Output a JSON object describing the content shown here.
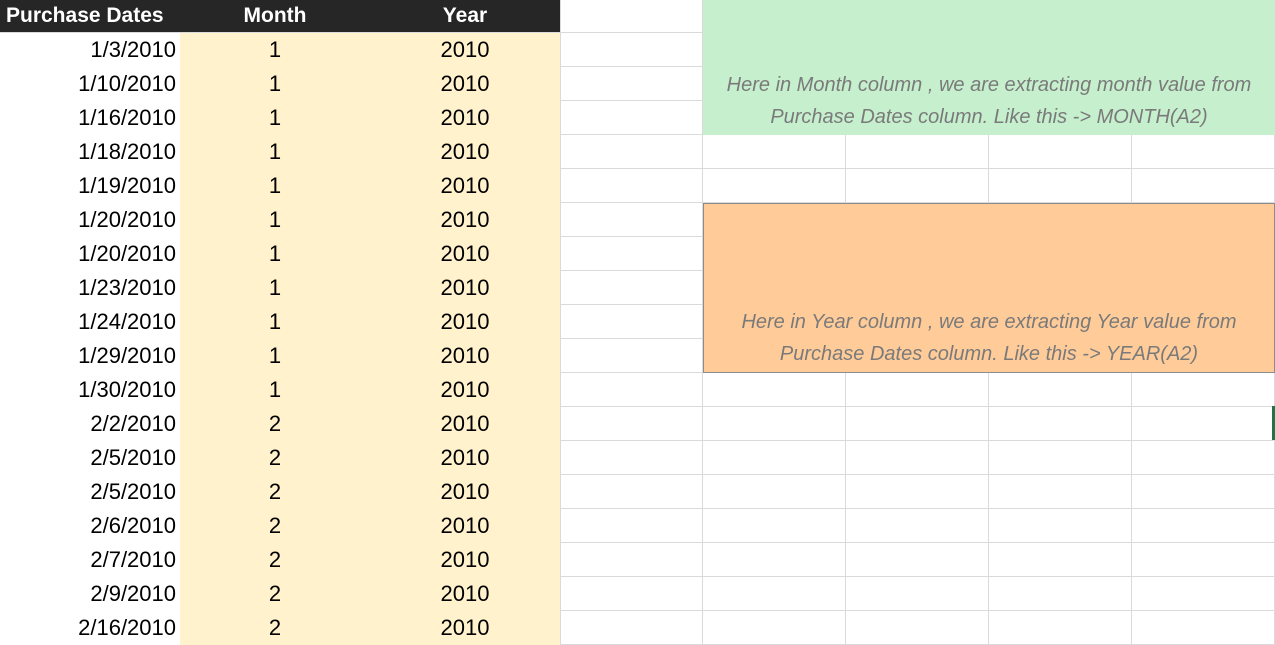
{
  "headers": {
    "purchase_dates": "Purchase Dates",
    "month": "Month",
    "year": "Year"
  },
  "rows": [
    {
      "date": "1/3/2010",
      "month": "1",
      "year": "2010"
    },
    {
      "date": "1/10/2010",
      "month": "1",
      "year": "2010"
    },
    {
      "date": "1/16/2010",
      "month": "1",
      "year": "2010"
    },
    {
      "date": "1/18/2010",
      "month": "1",
      "year": "2010"
    },
    {
      "date": "1/19/2010",
      "month": "1",
      "year": "2010"
    },
    {
      "date": "1/20/2010",
      "month": "1",
      "year": "2010"
    },
    {
      "date": "1/20/2010",
      "month": "1",
      "year": "2010"
    },
    {
      "date": "1/23/2010",
      "month": "1",
      "year": "2010"
    },
    {
      "date": "1/24/2010",
      "month": "1",
      "year": "2010"
    },
    {
      "date": "1/29/2010",
      "month": "1",
      "year": "2010"
    },
    {
      "date": "1/30/2010",
      "month": "1",
      "year": "2010"
    },
    {
      "date": "2/2/2010",
      "month": "2",
      "year": "2010"
    },
    {
      "date": "2/5/2010",
      "month": "2",
      "year": "2010"
    },
    {
      "date": "2/5/2010",
      "month": "2",
      "year": "2010"
    },
    {
      "date": "2/6/2010",
      "month": "2",
      "year": "2010"
    },
    {
      "date": "2/7/2010",
      "month": "2",
      "year": "2010"
    },
    {
      "date": "2/9/2010",
      "month": "2",
      "year": "2010"
    },
    {
      "date": "2/16/2010",
      "month": "2",
      "year": "2010"
    }
  ],
  "notes": {
    "month": "Here in Month column , we are extracting month value from Purchase Dates column. Like this -> MONTH(A2)",
    "year": "Here in Year column , we are extracting Year value from Purchase Dates column. Like this -> YEAR(A2)"
  },
  "colors": {
    "header_bg": "#262626",
    "header_text": "#ffffff",
    "derived_column_fill": "#fff2cc",
    "month_note_fill": "#c6efce",
    "year_note_fill": "#ffcc99",
    "note_text": "#7a7a7a",
    "gridline": "#dadada",
    "selection_accent": "#217346"
  }
}
